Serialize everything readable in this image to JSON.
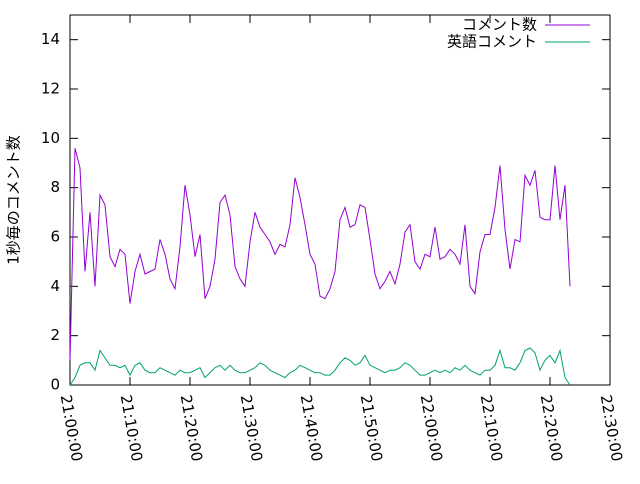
{
  "chart_data": {
    "type": "line",
    "ylabel": "1秒毎のコメント数",
    "legend": "upper right",
    "grid": false,
    "xlim": [
      "21:00:00",
      "22:30:00"
    ],
    "xticks": [
      "21:00:00",
      "21:10:00",
      "21:20:00",
      "21:30:00",
      "21:40:00",
      "21:50:00",
      "22:00:00",
      "22:10:00",
      "22:20:00",
      "22:30:00"
    ],
    "ylim": [
      0,
      15
    ],
    "yticks": [
      0,
      2,
      4,
      6,
      8,
      10,
      12,
      14
    ],
    "x": [
      "21:00:00",
      "21:00:50",
      "21:01:40",
      "21:02:30",
      "21:03:20",
      "21:04:10",
      "21:05:00",
      "21:05:50",
      "21:06:40",
      "21:07:30",
      "21:08:20",
      "21:09:10",
      "21:10:00",
      "21:10:50",
      "21:11:40",
      "21:12:30",
      "21:13:20",
      "21:14:10",
      "21:15:00",
      "21:15:50",
      "21:16:40",
      "21:17:30",
      "21:18:20",
      "21:19:10",
      "21:20:00",
      "21:20:50",
      "21:21:40",
      "21:22:30",
      "21:23:20",
      "21:24:10",
      "21:25:00",
      "21:25:50",
      "21:26:40",
      "21:27:30",
      "21:28:20",
      "21:29:10",
      "21:30:00",
      "21:30:50",
      "21:31:40",
      "21:32:30",
      "21:33:20",
      "21:34:10",
      "21:35:00",
      "21:35:50",
      "21:36:40",
      "21:37:30",
      "21:38:20",
      "21:39:10",
      "21:40:00",
      "21:40:50",
      "21:41:40",
      "21:42:30",
      "21:43:20",
      "21:44:10",
      "21:45:00",
      "21:45:50",
      "21:46:40",
      "21:47:30",
      "21:48:20",
      "21:49:10",
      "21:50:00",
      "21:50:50",
      "21:51:40",
      "21:52:30",
      "21:53:20",
      "21:54:10",
      "21:55:00",
      "21:55:50",
      "21:56:40",
      "21:57:30",
      "21:58:20",
      "21:59:10",
      "22:00:00",
      "22:00:50",
      "22:01:40",
      "22:02:30",
      "22:03:20",
      "22:04:10",
      "22:05:00",
      "22:05:50",
      "22:06:40",
      "22:07:30",
      "22:08:20",
      "22:09:10",
      "22:10:00",
      "22:10:50",
      "22:11:40",
      "22:12:30",
      "22:13:20",
      "22:14:10",
      "22:15:00",
      "22:15:50",
      "22:16:40",
      "22:17:30",
      "22:18:20",
      "22:19:10",
      "22:20:00",
      "22:20:50",
      "22:21:40",
      "22:22:30",
      "22:23:20"
    ],
    "series": [
      {
        "name": "コメント数",
        "color": "#9400d3",
        "values": [
          1.0,
          9.6,
          8.8,
          4.6,
          7.0,
          4.0,
          7.7,
          7.3,
          5.2,
          4.8,
          5.5,
          5.3,
          3.3,
          4.6,
          5.3,
          4.5,
          4.6,
          4.7,
          5.9,
          5.3,
          4.3,
          3.9,
          5.6,
          8.1,
          6.9,
          5.2,
          6.1,
          3.5,
          4.0,
          5.1,
          7.4,
          7.7,
          6.9,
          4.8,
          4.3,
          4.0,
          5.8,
          7.0,
          6.4,
          6.1,
          5.8,
          5.3,
          5.7,
          5.6,
          6.5,
          8.4,
          7.6,
          6.5,
          5.3,
          4.9,
          3.6,
          3.5,
          3.9,
          4.6,
          6.7,
          7.2,
          6.4,
          6.5,
          7.3,
          7.2,
          5.9,
          4.5,
          3.9,
          4.2,
          4.6,
          4.1,
          4.9,
          6.2,
          6.5,
          5.0,
          4.7,
          5.3,
          5.2,
          6.4,
          5.1,
          5.2,
          5.5,
          5.3,
          4.9,
          6.5,
          4.0,
          3.7,
          5.4,
          6.1,
          6.1,
          7.2,
          8.9,
          6.3,
          4.7,
          5.9,
          5.8,
          8.5,
          8.1,
          8.7,
          6.8,
          6.7,
          6.7,
          8.9,
          6.7,
          8.1,
          4.0
        ]
      },
      {
        "name": "英語コメント",
        "color": "#009e73",
        "values": [
          0,
          0.3,
          0.8,
          0.9,
          0.9,
          0.6,
          1.4,
          1.1,
          0.8,
          0.8,
          0.7,
          0.8,
          0.4,
          0.8,
          0.9,
          0.6,
          0.5,
          0.5,
          0.7,
          0.6,
          0.5,
          0.4,
          0.6,
          0.5,
          0.5,
          0.6,
          0.7,
          0.3,
          0.5,
          0.7,
          0.8,
          0.6,
          0.8,
          0.6,
          0.5,
          0.5,
          0.6,
          0.7,
          0.9,
          0.8,
          0.6,
          0.5,
          0.4,
          0.3,
          0.5,
          0.6,
          0.8,
          0.7,
          0.6,
          0.5,
          0.5,
          0.4,
          0.4,
          0.6,
          0.9,
          1.1,
          1.0,
          0.8,
          0.9,
          1.2,
          0.8,
          0.7,
          0.6,
          0.5,
          0.6,
          0.6,
          0.7,
          0.9,
          0.8,
          0.6,
          0.4,
          0.4,
          0.5,
          0.6,
          0.5,
          0.6,
          0.5,
          0.7,
          0.6,
          0.8,
          0.6,
          0.5,
          0.4,
          0.6,
          0.6,
          0.8,
          1.4,
          0.7,
          0.7,
          0.6,
          0.9,
          1.4,
          1.5,
          1.3,
          0.6,
          1.0,
          1.2,
          0.9,
          1.4,
          0.3,
          0
        ]
      }
    ]
  }
}
